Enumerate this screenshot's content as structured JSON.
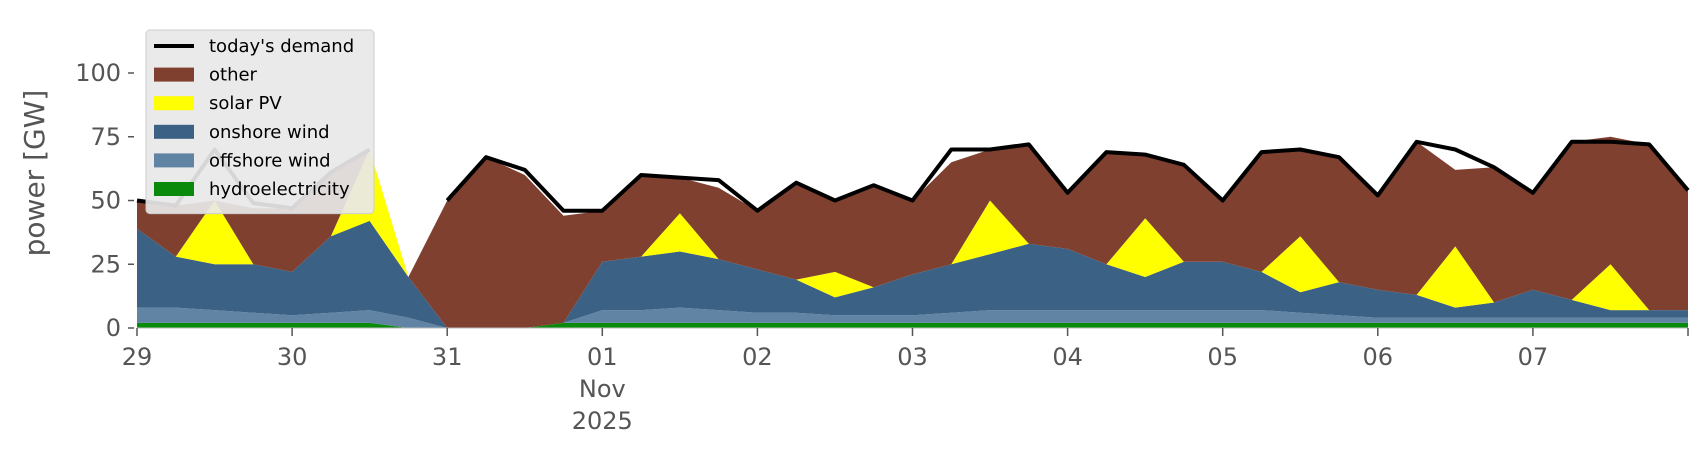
{
  "chart_data": {
    "type": "area",
    "ylabel": "power [GW]",
    "ylim": [
      0,
      120
    ],
    "y_ticks": [
      0,
      25,
      50,
      75,
      100
    ],
    "x_start": "2025-10-29T00:00",
    "x_end": "2025-11-08T00:00",
    "x_ticks": [
      {
        "day": 0,
        "label": "29"
      },
      {
        "day": 1,
        "label": "30"
      },
      {
        "day": 2,
        "label": "31"
      },
      {
        "day": 3,
        "label": "01",
        "sub1": "Nov",
        "sub2": "2025"
      },
      {
        "day": 4,
        "label": "02"
      },
      {
        "day": 5,
        "label": "03"
      },
      {
        "day": 6,
        "label": "04"
      },
      {
        "day": 7,
        "label": "05"
      },
      {
        "day": 8,
        "label": "06"
      },
      {
        "day": 9,
        "label": "07"
      }
    ],
    "legend": {
      "placement": "top-left",
      "entries": [
        {
          "name": "today's demand",
          "kind": "line",
          "color": "#000000"
        },
        {
          "name": "other",
          "kind": "patch",
          "color": "#7f4030"
        },
        {
          "name": "solar PV",
          "kind": "patch",
          "color": "#ffff00"
        },
        {
          "name": "onshore wind",
          "kind": "patch",
          "color": "#3b6184"
        },
        {
          "name": "offshore wind",
          "kind": "patch",
          "color": "#6184a4"
        },
        {
          "name": "hydroelectricity",
          "kind": "patch",
          "color": "#0a8a0a"
        }
      ]
    },
    "x": [
      "2025-10-29 00:00",
      "2025-10-29 06:00",
      "2025-10-29 12:00",
      "2025-10-29 18:00",
      "2025-10-30 00:00",
      "2025-10-30 06:00",
      "2025-10-30 12:00",
      "2025-10-30 18:00",
      "2025-10-31 00:00",
      "2025-10-31 06:00",
      "2025-10-31 12:00",
      "2025-10-31 18:00",
      "2025-11-01 00:00",
      "2025-11-01 06:00",
      "2025-11-01 12:00",
      "2025-11-01 18:00",
      "2025-11-02 00:00",
      "2025-11-02 06:00",
      "2025-11-02 12:00",
      "2025-11-02 18:00",
      "2025-11-03 00:00",
      "2025-11-03 06:00",
      "2025-11-03 12:00",
      "2025-11-03 18:00",
      "2025-11-04 00:00",
      "2025-11-04 06:00",
      "2025-11-04 12:00",
      "2025-11-04 18:00",
      "2025-11-05 00:00",
      "2025-11-05 06:00",
      "2025-11-05 12:00",
      "2025-11-05 18:00",
      "2025-11-06 00:00",
      "2025-11-06 06:00",
      "2025-11-06 12:00",
      "2025-11-06 18:00",
      "2025-11-07 00:00",
      "2025-11-07 06:00",
      "2025-11-07 12:00",
      "2025-11-07 18:00",
      "2025-11-08 00:00"
    ],
    "series": [
      {
        "name": "hydroelectricity",
        "color": "#0a8a0a",
        "values": [
          2,
          2,
          2,
          2,
          2,
          2,
          2,
          0,
          0,
          0,
          0,
          2,
          2,
          2,
          2,
          2,
          2,
          2,
          2,
          2,
          2,
          2,
          2,
          2,
          2,
          2,
          2,
          2,
          2,
          2,
          2,
          2,
          2,
          2,
          2,
          2,
          2,
          2,
          2,
          2,
          2
        ]
      },
      {
        "name": "offshore wind",
        "color": "#6184a4",
        "values": [
          6,
          6,
          5,
          4,
          3,
          4,
          5,
          4,
          0,
          0,
          0,
          0,
          5,
          5,
          6,
          5,
          4,
          4,
          3,
          3,
          3,
          4,
          5,
          5,
          5,
          5,
          5,
          5,
          5,
          5,
          4,
          3,
          2,
          2,
          2,
          2,
          2,
          2,
          2,
          2,
          2
        ]
      },
      {
        "name": "onshore wind",
        "color": "#3b6184",
        "values": [
          31,
          20,
          18,
          19,
          17,
          30,
          35,
          16,
          0,
          0,
          0,
          0,
          19,
          21,
          22,
          20,
          17,
          13,
          7,
          11,
          16,
          19,
          22,
          26,
          24,
          18,
          13,
          19,
          19,
          15,
          8,
          13,
          11,
          9,
          4,
          6,
          11,
          7,
          3,
          3,
          3
        ]
      },
      {
        "name": "solar PV",
        "color": "#ffff00",
        "values": [
          0,
          0,
          25,
          0,
          0,
          0,
          28,
          0,
          0,
          0,
          0,
          0,
          0,
          0,
          15,
          0,
          0,
          0,
          10,
          0,
          0,
          0,
          21,
          0,
          0,
          0,
          23,
          0,
          0,
          0,
          22,
          0,
          0,
          0,
          24,
          0,
          0,
          0,
          18,
          0,
          0
        ]
      },
      {
        "name": "other",
        "color": "#7f4030",
        "values": [
          11,
          20,
          0,
          22,
          25,
          25,
          0,
          0,
          50,
          67,
          60,
          42,
          20,
          32,
          14,
          28,
          23,
          38,
          28,
          40,
          29,
          40,
          20,
          39,
          22,
          44,
          25,
          38,
          24,
          47,
          34,
          49,
          37,
          60,
          30,
          53,
          38,
          62,
          50,
          65,
          47
        ]
      }
    ],
    "demand": {
      "name": "today's demand",
      "color": "#000000",
      "values": [
        50,
        48,
        70,
        49,
        47,
        61,
        70,
        null,
        50,
        67,
        62,
        46,
        46,
        60,
        59,
        58,
        46,
        57,
        50,
        56,
        50,
        70,
        70,
        72,
        53,
        69,
        68,
        64,
        50,
        69,
        70,
        67,
        52,
        73,
        70,
        63,
        53,
        73,
        73,
        72,
        54
      ]
    }
  }
}
